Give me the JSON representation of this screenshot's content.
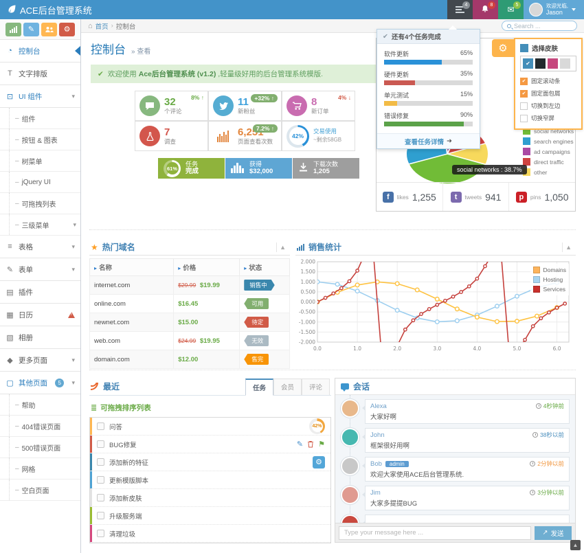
{
  "navbar": {
    "brand": "ACE后台管理系统",
    "tasks_badge": "4",
    "alerts_badge": "8",
    "messages_badge": "5",
    "greeting": "欢迎光临,",
    "username": "Jason"
  },
  "breadcrumb": {
    "home": "首页",
    "current": "控制台",
    "search_placeholder": "Search ..."
  },
  "sidebar": {
    "shortcuts": [
      {
        "icon": "signal",
        "bg": "#87B87F"
      },
      {
        "icon": "pencil",
        "bg": "#6FB3E0"
      },
      {
        "icon": "users",
        "bg": "#FFB752"
      },
      {
        "icon": "cogs",
        "bg": "#D15B47"
      }
    ],
    "items": [
      {
        "icon": "gauge",
        "label": "控制台",
        "active": true
      },
      {
        "icon": "text",
        "label": "文字排版"
      },
      {
        "icon": "desktop",
        "label": "UI 组件",
        "chevron": true,
        "open": true,
        "submenu": [
          {
            "label": "组件"
          },
          {
            "label": "按钮 & 图表"
          },
          {
            "label": "树菜单"
          },
          {
            "label": "jQuery UI"
          },
          {
            "label": "可拖拽列表"
          },
          {
            "label": "三级菜单",
            "chevron": true
          }
        ]
      },
      {
        "icon": "table",
        "label": "表格",
        "chevron": true
      },
      {
        "icon": "form",
        "label": "表单",
        "chevron": true
      },
      {
        "icon": "plugin",
        "label": "插件"
      },
      {
        "icon": "calendar",
        "label": "日历",
        "warning": true
      },
      {
        "icon": "album",
        "label": "相册"
      },
      {
        "icon": "tag",
        "label": "更多页面",
        "chevron": true
      },
      {
        "icon": "file",
        "label": "其他页面",
        "badge": "5",
        "chevron": true,
        "open": true,
        "submenu": [
          {
            "label": "帮助"
          },
          {
            "label": "404错误页面"
          },
          {
            "label": "500错误页面"
          },
          {
            "label": "网格"
          },
          {
            "label": "空白页面"
          }
        ]
      }
    ]
  },
  "page": {
    "title": "控制台",
    "subtitle": "» 查看"
  },
  "alert": {
    "prefix": "欢迎使用",
    "bold": "Ace后台管理系统 (v1.2)",
    "suffix": ",轻量级好用的后台管理系统模版."
  },
  "infoboxes": [
    {
      "icon": "comment",
      "icon_bg": "#87B87F",
      "value": "32",
      "value_color": "#69AA46",
      "label": "个评论",
      "trend": "8%",
      "arrow": "↑",
      "tc": "green",
      "ring_pct": 0,
      "ring_label": "",
      "sub": ""
    },
    {
      "icon": "bird",
      "icon_bg": "#55ACD2",
      "value": "11",
      "value_color": "#3DA0DB",
      "label": "新粉丝",
      "trend": "+32%",
      "arrow": "↑",
      "tc": "pill",
      "ring_pct": 0,
      "ring_label": "",
      "sub": ""
    },
    {
      "icon": "cart",
      "icon_bg": "#C96CB0",
      "value": "8",
      "value_color": "#C96CB0",
      "label": "新订单",
      "trend": "4%",
      "arrow": "↓",
      "tc": "red",
      "ring_pct": 0,
      "ring_label": "",
      "sub": ""
    },
    {
      "icon": "flask",
      "icon_bg": "#D3564C",
      "value": "7",
      "value_color": "#D3564C",
      "label": "调查",
      "trend": "",
      "arrow": "",
      "tc": "",
      "ring_pct": 0,
      "ring_label": "",
      "sub": ""
    },
    {
      "icon": "bars-orange",
      "icon_bg": "",
      "value": "6,251",
      "value_color": "#E2853C",
      "label": "页面查看次数",
      "trend": "7.2%",
      "arrow": "↑",
      "tc": "pill",
      "ring_pct": 0,
      "ring_label": "",
      "sub": ""
    },
    {
      "icon": "",
      "icon_bg": "",
      "value": "",
      "value_color": "#409FD3",
      "label": "交易使用",
      "label_color": "#409FD3",
      "trend": "",
      "arrow": "",
      "tc": "",
      "ring_pct": 42,
      "ring_label": "42%",
      "sub": "~剩余58GB"
    }
  ],
  "stat_buttons": [
    {
      "bg": "#8FB33C",
      "is_ring": true,
      "ring_pct": 61,
      "ring_label": "61%",
      "icon": "",
      "line1": "任务",
      "line2": "完成"
    },
    {
      "bg": "#5EA6D4",
      "is_ring": false,
      "ring_pct": 0,
      "ring_label": "",
      "icon": "bars-white",
      "line1": "获得",
      "line2": "$32,000"
    },
    {
      "bg": "#9E9E9E",
      "is_ring": false,
      "ring_pct": 0,
      "ring_label": "",
      "icon": "download",
      "line1": "下载次数",
      "line2": "1,205"
    }
  ],
  "tasks_dropdown": {
    "header": "还有4个任务完成",
    "items": [
      {
        "label": "软件更新",
        "pct_label": "65%",
        "color": "#2A91D8",
        "striped": false
      },
      {
        "label": "硬件更新",
        "pct_label": "35%",
        "color": "#CA5952",
        "striped": true
      },
      {
        "label": "单元测试",
        "pct_label": "15%",
        "color": "#F2BB46",
        "striped": true
      },
      {
        "label": "错误修复",
        "pct_label": "90%",
        "color": "#5BA249",
        "striped": true
      }
    ],
    "footer": "查看任务详情"
  },
  "settings": {
    "title": "选择皮肤",
    "swatches": [
      {
        "color": "#438EB9",
        "selected": true
      },
      {
        "color": "#222A2D",
        "selected": false
      },
      {
        "color": "#C6487E",
        "selected": false
      },
      {
        "color": "#D9D9D9",
        "selected": false
      }
    ],
    "options": [
      {
        "label": "固定滚动条",
        "checked": true
      },
      {
        "label": "固定面包屑",
        "checked": true
      },
      {
        "label": "切换到左边",
        "checked": false
      },
      {
        "label": "切换窄屏",
        "checked": false
      }
    ]
  },
  "pie_panel": {
    "stats": [
      {
        "icon": "facebook",
        "icon_bg": "#4871A8",
        "label": "likes",
        "value": "1,255"
      },
      {
        "icon": "twitterbox",
        "icon_bg": "#7C6AAE",
        "label": "tweets",
        "value": "941"
      },
      {
        "icon": "pinterest",
        "icon_bg": "#CB2027",
        "label": "pins",
        "value": "1,050"
      }
    ]
  },
  "domains_panel": {
    "title": "热门域名",
    "columns": [
      "名称",
      "价格",
      "状态"
    ],
    "rows": [
      {
        "name": "internet.com",
        "old_price": "$29.99",
        "price": "$19.99",
        "status": "销售中",
        "badge": "#3A87AD",
        "shape": "arrow-right"
      },
      {
        "name": "online.com",
        "old_price": "",
        "price": "$16.45",
        "status": "可用",
        "badge": "#82AF6F",
        "shape": "arrow-left"
      },
      {
        "name": "newnet.com",
        "old_price": "",
        "price": "$15.00",
        "status": "待定",
        "badge": "#D15B47",
        "shape": "arrow-left"
      },
      {
        "name": "web.com",
        "old_price": "$24.99",
        "price": "$19.95",
        "status": "无效",
        "badge": "#ABBAC3",
        "shape": "arrow-left"
      },
      {
        "name": "domain.com",
        "old_price": "",
        "price": "$12.00",
        "status": "售完",
        "badge": "#F89406",
        "shape": "arrow-left"
      }
    ]
  },
  "sales_panel": {
    "title": "销售统计"
  },
  "chart_data": [
    {
      "type": "pie",
      "start_angle": 200,
      "legend": [
        {
          "label": "social networks",
          "color": "#71BC37"
        },
        {
          "label": "search engines",
          "color": "#2F9FD0"
        },
        {
          "label": "ad campaigns",
          "color": "#AA4AA4"
        },
        {
          "label": "direct traffic",
          "color": "#CE4340"
        },
        {
          "label": "other",
          "color": "#F7D95C"
        }
      ],
      "slices": [
        {
          "label": "social networks",
          "value": 38.7,
          "color": "#71BC37"
        },
        {
          "label": "other",
          "value": 11.5,
          "color": "#F7D95C"
        },
        {
          "label": "direct traffic",
          "value": 13.9,
          "color": "#CE4340"
        },
        {
          "label": "ad campaigns",
          "value": 7,
          "color": "#AA4AA4"
        },
        {
          "label": "search engines",
          "value": 28.9,
          "color": "#2F9FD0"
        }
      ],
      "tooltip": "social networks : 38.7%"
    },
    {
      "type": "line",
      "title": "销售统计",
      "xlim": [
        0,
        6.3
      ],
      "ylim": [
        -2,
        2
      ],
      "grid": true,
      "legend_position": "top-right",
      "yticks": [
        "2.000",
        "1.500",
        "1.000",
        "0.500",
        "0.000",
        "-0.500",
        "-1.000",
        "-1.500",
        "-2.000"
      ],
      "xticks": [
        "0.0",
        "1.0",
        "2.0",
        "3.0",
        "4.0",
        "5.0",
        "6.0"
      ],
      "legend": [
        {
          "label": "Domains",
          "color": "#FDB45C"
        },
        {
          "label": "Hosting",
          "color": "#A8D5F1"
        },
        {
          "label": "Services",
          "color": "#C9302C"
        }
      ],
      "series": [
        {
          "name": "Hosting",
          "color": "#9CCEEF",
          "point_radius": 2.8,
          "x": [
            0,
            0.5,
            1,
            1.5,
            2,
            2.5,
            3,
            3.5,
            4,
            4.5,
            5,
            5.5,
            6
          ],
          "y": [
            1,
            0.878,
            0.54,
            0.071,
            -0.416,
            -0.801,
            -0.99,
            -0.936,
            -0.654,
            -0.211,
            0.284,
            0.709,
            0.96
          ]
        },
        {
          "name": "Domains",
          "color": "#FEC240",
          "point_radius": 2.8,
          "x": [
            0,
            0.5,
            1,
            1.5,
            2,
            2.5,
            3,
            3.5,
            4,
            4.5,
            5,
            5.5,
            6
          ],
          "y": [
            0,
            0.479,
            0.841,
            0.997,
            0.909,
            0.599,
            0.141,
            -0.351,
            -0.757,
            -0.978,
            -0.959,
            -0.706,
            -0.279
          ]
        },
        {
          "name": "Services",
          "color": "#C5403C",
          "point_radius": 2.2,
          "x": [
            0,
            0.2,
            0.4,
            0.6,
            0.8,
            1,
            1.2,
            1.4,
            1.6,
            1.8,
            2,
            2.2,
            2.4,
            2.6,
            2.8,
            3,
            3.2,
            3.4,
            3.6,
            3.8,
            4,
            4.2,
            4.4,
            4.6,
            4.8,
            5,
            5.2,
            5.4,
            5.6,
            5.8,
            6,
            6.2
          ],
          "y": [
            0,
            0.203,
            0.423,
            0.684,
            1.03,
            1.557,
            2.572,
            5.798,
            -34.233,
            -4.286,
            -2.185,
            -1.374,
            -0.916,
            -0.602,
            -0.356,
            -0.143,
            0.058,
            0.264,
            0.493,
            0.774,
            1.158,
            1.778,
            3.096,
            8.86,
            -11.385,
            -3.381,
            -1.886,
            -1.21,
            -0.814,
            -0.524,
            -0.291,
            -0.084
          ]
        }
      ]
    }
  ],
  "recent_panel": {
    "title": "最近",
    "tabs": [
      {
        "label": "任务",
        "active": true
      },
      {
        "label": "会员",
        "active": false
      },
      {
        "label": "评论",
        "active": false
      }
    ],
    "list_title": "可拖拽排序列表",
    "tasks": [
      {
        "label": "问答",
        "bar": "#FFB752",
        "w_ring": true,
        "ring_pct": 42,
        "ring_label": "42%",
        "w_icons": false,
        "w_gear": false
      },
      {
        "label": "BUG修复",
        "bar": "#D15B47",
        "w_ring": false,
        "ring_pct": 0,
        "ring_label": "",
        "w_icons": true,
        "w_gear": false
      },
      {
        "label": "添加新的特征",
        "bar": "#3A87AD",
        "w_ring": false,
        "ring_pct": 0,
        "ring_label": "",
        "w_icons": false,
        "w_gear": true
      },
      {
        "label": "更新模版脚本",
        "bar": "#4FA3D4",
        "w_ring": false,
        "ring_pct": 0,
        "ring_label": "",
        "w_icons": false,
        "w_gear": false
      },
      {
        "label": "添加新皮肤",
        "bar": "#E3E3E3",
        "w_ring": false,
        "ring_pct": 0,
        "ring_label": "",
        "w_icons": false,
        "w_gear": false
      },
      {
        "label": "升级服务端",
        "bar": "#9ABC32",
        "w_ring": false,
        "ring_pct": 0,
        "ring_label": "",
        "w_icons": false,
        "w_gear": false
      },
      {
        "label": "清理垃圾",
        "bar": "#D6487E",
        "w_ring": false,
        "ring_pct": 0,
        "ring_label": "",
        "w_icons": false,
        "w_gear": false
      }
    ]
  },
  "conversation_panel": {
    "title": "会话",
    "messages": [
      {
        "name": "Alexa",
        "role": "",
        "text": "大家好啊",
        "time": "4秒钟前",
        "time_color": "#69AA46",
        "avatar": "#E8B88B"
      },
      {
        "name": "John",
        "role": "",
        "text": "框架很好用啊",
        "time": "38秒以前",
        "time_color": "#4C8FBD",
        "avatar": "#46B8B0"
      },
      {
        "name": "Bob",
        "role": "admin",
        "text": "欢迎大家使用ACE后台管理系统.",
        "time": "2分钟以前",
        "time_color": "#F0963F",
        "avatar": "#C8C8C8"
      },
      {
        "name": "Jim",
        "role": "",
        "text": "大家多提提BUG",
        "time": "3分钟以前",
        "time_color": "#69AA46",
        "avatar": "#E09A90"
      }
    ],
    "partial_avatar": "#C9493F",
    "input_placeholder": "Type your message here ...",
    "send_label": "发送"
  }
}
